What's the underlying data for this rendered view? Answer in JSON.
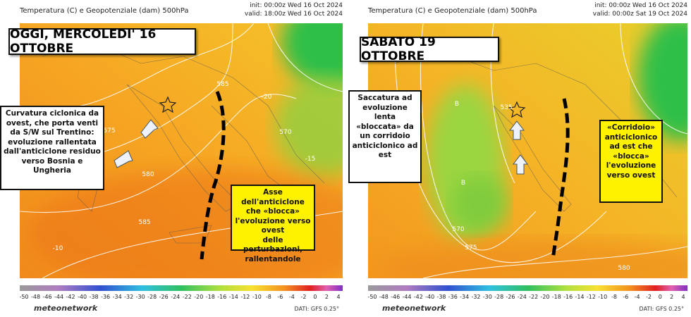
{
  "panels": [
    {
      "header": "Temperatura (C) e Geopotenziale (dam) 500hPa",
      "init": "init: 00:00z Wed 16 Oct 2024",
      "valid": "valid: 18:00z Wed 16 Oct 2024",
      "title": "OGGI, MERCOLEDI' 16 OTTOBRE",
      "note_left": [
        "Curvatura ciclonica da",
        "ovest, che porta venti",
        "da S/W sul Trentino:",
        "evoluzione rallentata",
        "dall'anticiclone residuo",
        "verso Bosnia e Ungheria"
      ],
      "note_yellow": [
        "Asse dell'anticiclone",
        "che «blocca»",
        "l'evoluzione verso ovest",
        "delle perturbazioni,",
        "rallentandole"
      ],
      "contour_labels": [
        "575",
        "580",
        "585",
        "-15",
        "-20",
        "570",
        "585",
        "-10"
      ],
      "colorbar_ticks": [
        -50,
        -48,
        -46,
        -44,
        -42,
        -40,
        -38,
        -36,
        -34,
        -32,
        -30,
        -28,
        -26,
        -24,
        -22,
        -20,
        -18,
        -16,
        -14,
        -12,
        -10,
        -8,
        -6,
        -4,
        -2,
        0,
        2,
        4
      ],
      "brand": "meteonetwork",
      "source": "DATI: GFS 0.25°"
    },
    {
      "header": "Temperatura (C) e Geopotenziale (dam) 500hPa",
      "init": "init: 00:00z Wed 16 Oct 2024",
      "valid": "valid: 00:00z Sat 19 Oct 2024",
      "title": "SABATO 19 OTTOBRE",
      "note_left": [
        "Saccatura ad",
        "evoluzione",
        "lenta",
        "«bloccata» da",
        "un corridoio",
        "anticiclonico ad",
        "est"
      ],
      "note_yellow": [
        "«Corridoio»",
        "anticiclonico",
        "ad est che",
        "«blocca»",
        "l'evoluzione",
        "verso ovest"
      ],
      "contour_labels": [
        "B",
        "B",
        "570",
        "575",
        "580",
        "535"
      ],
      "colorbar_ticks": [
        -50,
        -48,
        -46,
        -44,
        -42,
        -40,
        -38,
        -36,
        -34,
        -32,
        -30,
        -28,
        -26,
        -24,
        -22,
        -20,
        -18,
        -16,
        -14,
        -12,
        -10,
        -8,
        -6,
        -4,
        -2,
        0,
        2,
        4
      ],
      "brand": "meteonetwork",
      "source": "DATI: GFS 0.25°"
    }
  ]
}
